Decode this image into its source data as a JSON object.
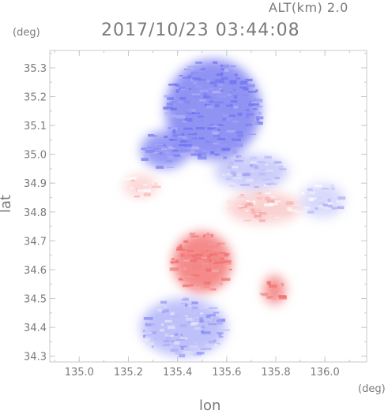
{
  "header": {
    "alt_text": "ALT(km) 2.0",
    "timestamp": "2017/10/23 03:44:08",
    "y_unit": "(deg)",
    "x_unit": "(deg)"
  },
  "colors": {
    "frame": "#c8c8c8",
    "text": "#7a7a7a",
    "approaching": "#6f72f0",
    "receding": "#f26e6e",
    "neutral": "#ffffff"
  },
  "chart_data": {
    "type": "heatmap",
    "title": "2017/10/23 03:44:08",
    "subtitle": "ALT(km) 2.0",
    "xlabel": "lon",
    "ylabel": "lat",
    "xlim": [
      134.88,
      136.17
    ],
    "ylim": [
      34.28,
      35.36
    ],
    "x_ticks": [
      "135.0",
      "135.2",
      "135.4",
      "135.6",
      "135.8",
      "136.0"
    ],
    "y_ticks": [
      "34.3",
      "34.4",
      "34.5",
      "34.6",
      "34.7",
      "34.8",
      "34.9",
      "35.0",
      "35.1",
      "35.2",
      "35.3"
    ],
    "colormap": "blue-white-red diverging (Doppler velocity)",
    "regions": [
      {
        "lon": [
          135.35,
          135.74
        ],
        "lat": [
          34.98,
          35.33
        ],
        "value": -0.85
      },
      {
        "lon": [
          135.25,
          135.45
        ],
        "lat": [
          34.95,
          35.08
        ],
        "value": -0.8
      },
      {
        "lon": [
          135.55,
          135.85
        ],
        "lat": [
          34.88,
          35.0
        ],
        "value": -0.4
      },
      {
        "lon": [
          135.18,
          135.32
        ],
        "lat": [
          34.85,
          34.93
        ],
        "value": 0.3
      },
      {
        "lon": [
          135.6,
          135.9
        ],
        "lat": [
          34.76,
          34.87
        ],
        "value": 0.35
      },
      {
        "lon": [
          135.9,
          136.08
        ],
        "lat": [
          34.78,
          34.9
        ],
        "value": -0.3
      },
      {
        "lon": [
          135.38,
          135.62
        ],
        "lat": [
          34.52,
          34.73
        ],
        "value": 0.9
      },
      {
        "lon": [
          135.75,
          135.84
        ],
        "lat": [
          34.48,
          34.58
        ],
        "value": 0.85
      },
      {
        "lon": [
          135.25,
          135.6
        ],
        "lat": [
          34.3,
          34.5
        ],
        "value": -0.5
      }
    ]
  }
}
